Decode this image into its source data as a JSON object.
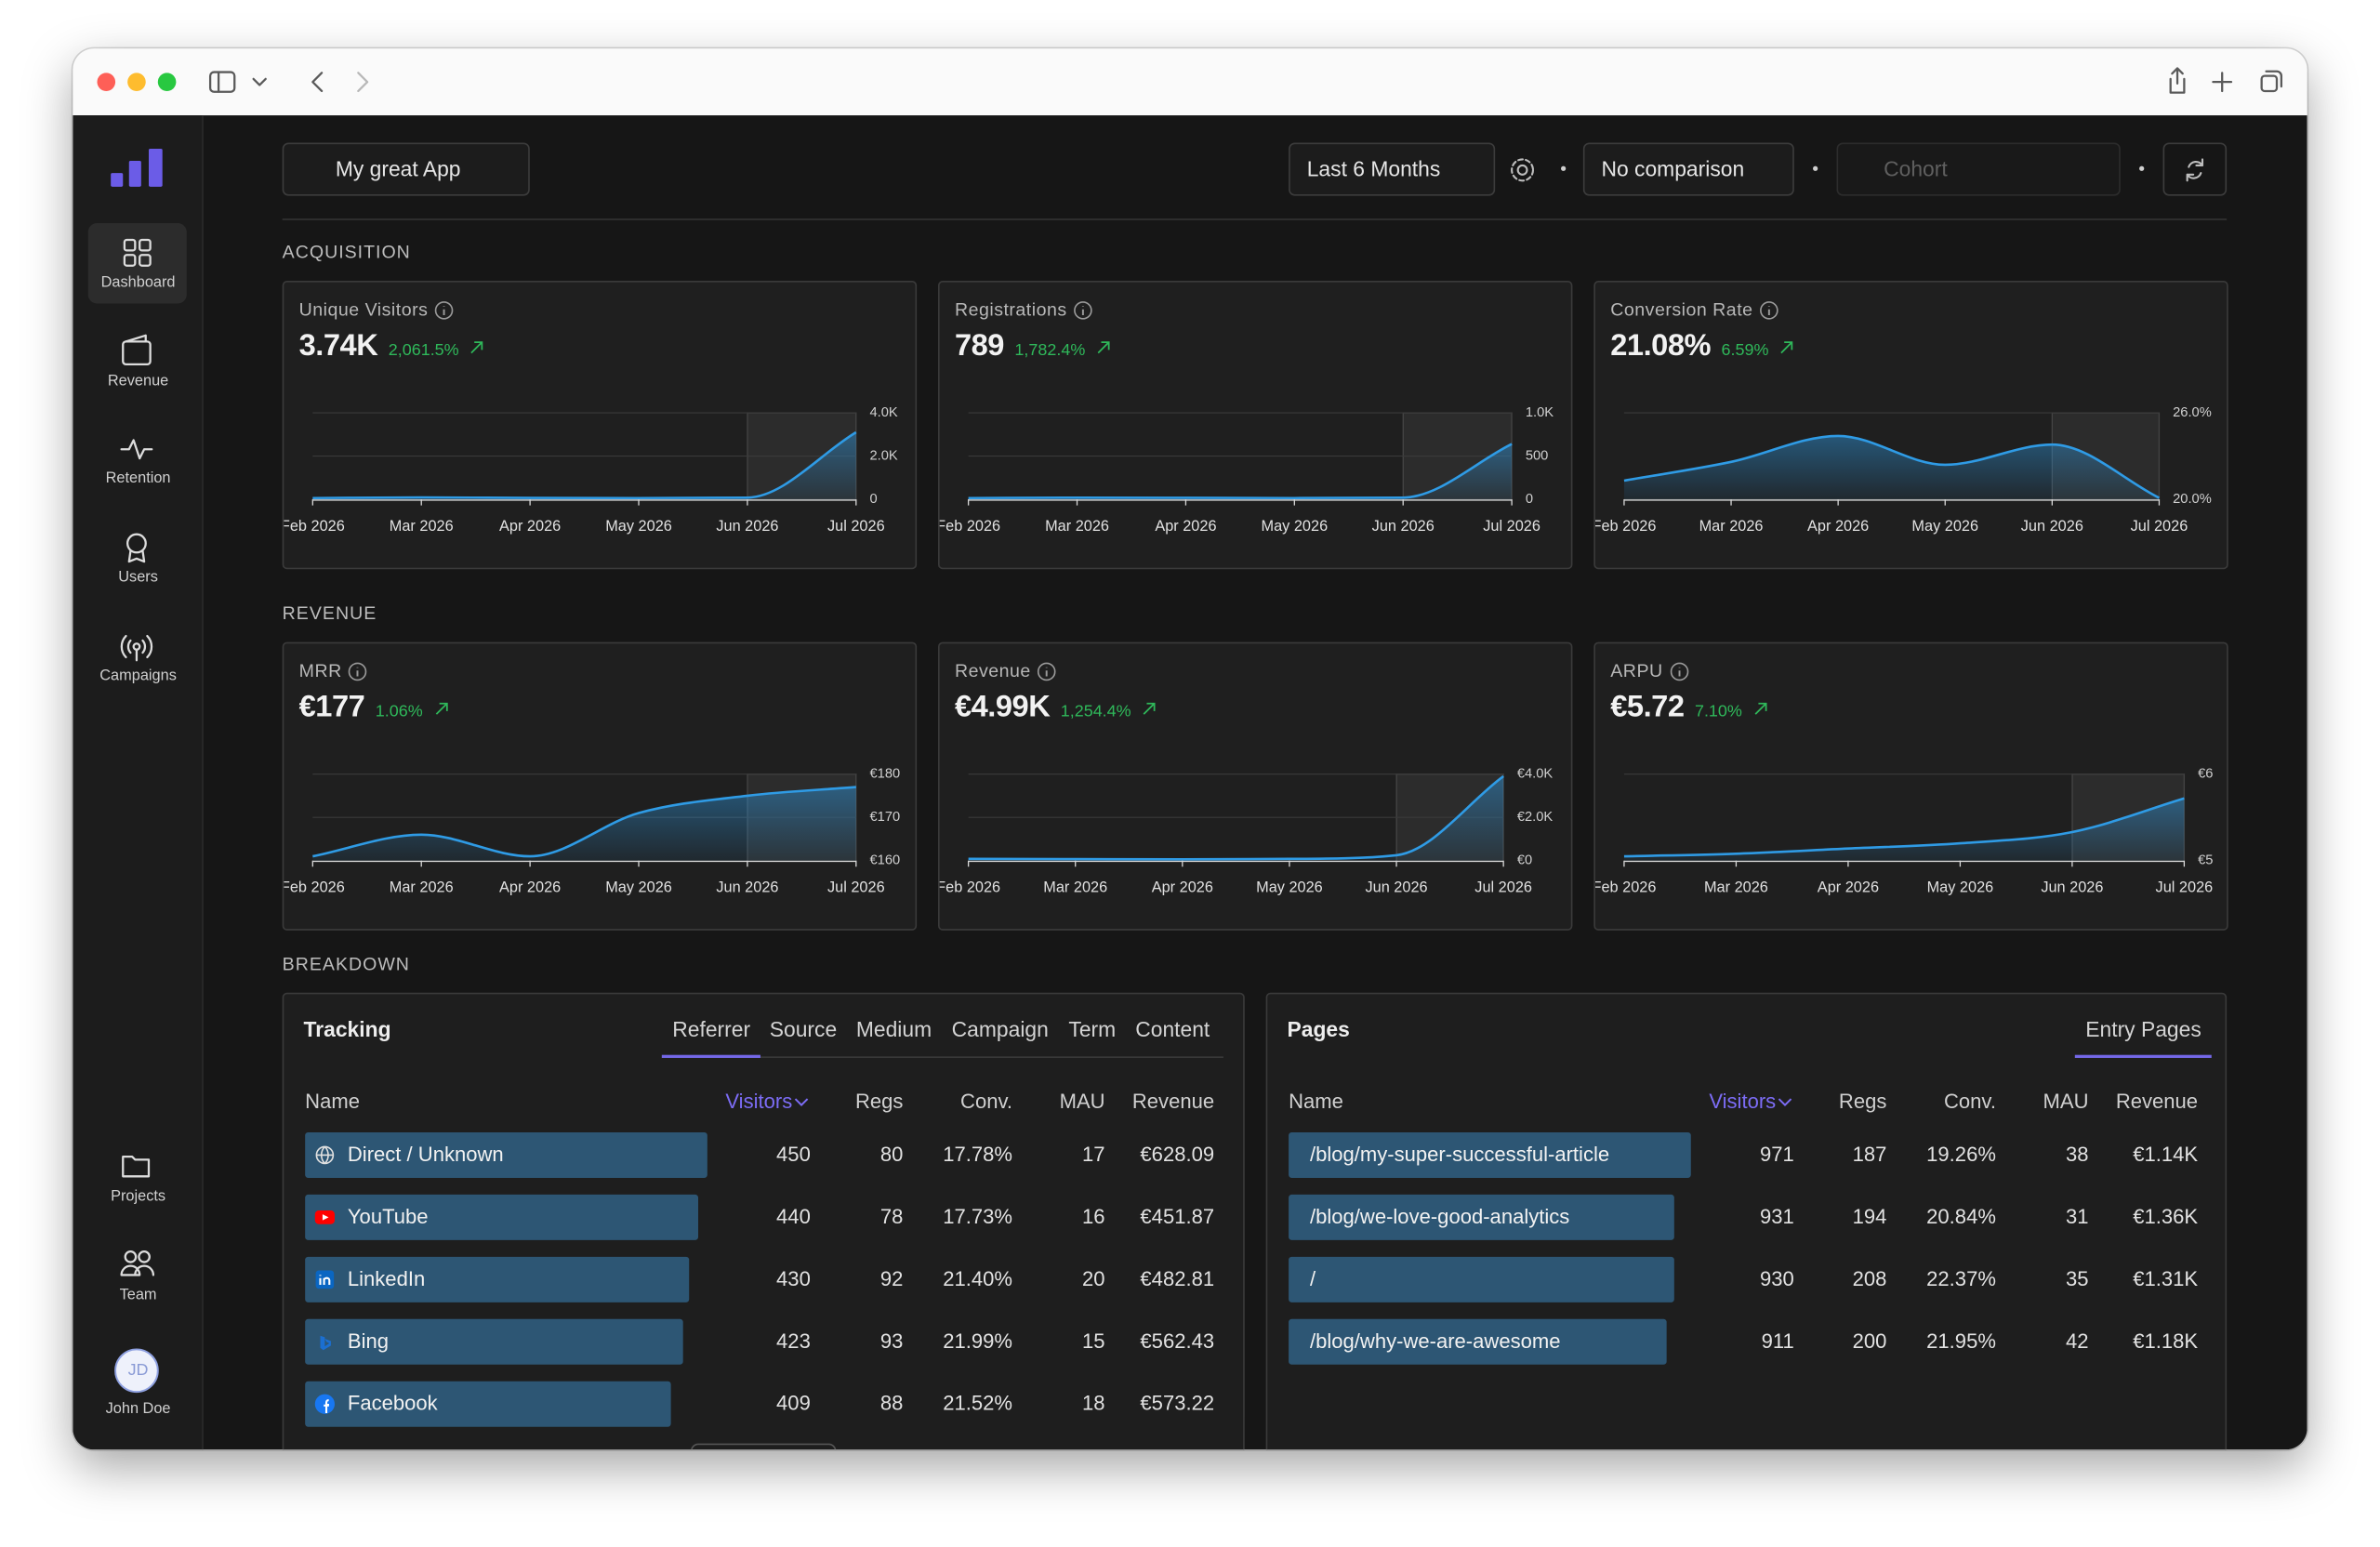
{
  "app": {
    "project": "My great App",
    "period": "Last 6 Months",
    "comparison": "No comparison",
    "cohort_placeholder": "Cohort"
  },
  "sidebar": {
    "nav": [
      "Dashboard",
      "Revenue",
      "Retention",
      "Users",
      "Campaigns"
    ],
    "active": 0,
    "bottom": [
      "Projects",
      "Team"
    ],
    "user_initials": "JD",
    "user_name": "John Doe"
  },
  "sections": [
    {
      "heading": "ACQUISITION",
      "cards": [
        {
          "title": "Unique Visitors",
          "value": "3.74K",
          "change": "2,061.5%",
          "color": "#2f9be5",
          "categories": [
            "Feb 2026",
            "Mar 2026",
            "Apr 2026",
            "May 2026",
            "Jun 2026",
            "Jul 2026"
          ],
          "ylim": [
            0,
            4000
          ],
          "yticks": [
            0,
            {
              "value": 2000,
              "label": "2.0K"
            },
            {
              "value": 4000,
              "label": "4.0K"
            }
          ],
          "values": [
            60,
            90,
            70,
            60,
            80,
            3100
          ]
        },
        {
          "title": "Registrations",
          "value": "789",
          "change": "1,782.4%",
          "color": "#2f9be5",
          "categories": [
            "Feb 2026",
            "Mar 2026",
            "Apr 2026",
            "May 2026",
            "Jun 2026",
            "Jul 2026"
          ],
          "ylim": [
            0,
            1000
          ],
          "yticks": [
            0,
            500,
            {
              "value": 1000,
              "label": "1.0K"
            }
          ],
          "values": [
            15,
            20,
            18,
            15,
            20,
            640
          ]
        },
        {
          "title": "Conversion Rate",
          "value": "21.08%",
          "change": "6.59%",
          "color": "#2f9be5",
          "categories": [
            "Feb 2026",
            "Mar 2026",
            "Apr 2026",
            "May 2026",
            "Jun 2026",
            "Jul 2026"
          ],
          "ylim": [
            20,
            26
          ],
          "yticks": [
            {
              "value": 20,
              "label": "20.0%"
            },
            {
              "value": 26,
              "label": "26.0%"
            }
          ],
          "values": [
            21.3,
            22.6,
            24.4,
            22.4,
            23.8,
            20.1
          ]
        }
      ]
    },
    {
      "heading": "REVENUE",
      "cards": [
        {
          "title": "MRR",
          "value": "€177",
          "change": "1.06%",
          "color": "#2f9be5",
          "categories": [
            "Feb 2026",
            "Mar 2026",
            "Apr 2026",
            "May 2026",
            "Jun 2026",
            "Jul 2026"
          ],
          "ylim": [
            160,
            180
          ],
          "yticks": [
            {
              "value": 160,
              "label": "€160"
            },
            {
              "value": 170,
              "label": "€170"
            },
            {
              "value": 180,
              "label": "€180"
            }
          ],
          "values": [
            161,
            166,
            161,
            171,
            175,
            177
          ]
        },
        {
          "title": "Revenue",
          "value": "€4.99K",
          "change": "1,254.4%",
          "color": "#2f9be5",
          "categories": [
            "Feb 2026",
            "Mar 2026",
            "Apr 2026",
            "May 2026",
            "Jun 2026",
            "Jul 2026"
          ],
          "ylim": [
            0,
            4000
          ],
          "yticks": [
            {
              "value": 0,
              "label": "€0"
            },
            {
              "value": 2000,
              "label": "€2.0K"
            },
            {
              "value": 4000,
              "label": "€4.0K"
            }
          ],
          "values": [
            80,
            70,
            60,
            80,
            250,
            3900
          ]
        },
        {
          "title": "ARPU",
          "value": "€5.72",
          "change": "7.10%",
          "color": "#2f9be5",
          "categories": [
            "Feb 2026",
            "Mar 2026",
            "Apr 2026",
            "May 2026",
            "Jun 2026",
            "Jul 2026"
          ],
          "ylim": [
            5,
            6
          ],
          "yticks": [
            {
              "value": 5,
              "label": "€5"
            },
            {
              "value": 6,
              "label": "€6"
            }
          ],
          "values": [
            5.05,
            5.08,
            5.14,
            5.2,
            5.33,
            5.72
          ]
        }
      ]
    }
  ],
  "breakdown": {
    "heading": "BREAKDOWN",
    "tracking": {
      "title": "Tracking",
      "tabs": [
        "Referrer",
        "Source",
        "Medium",
        "Campaign",
        "Term",
        "Content"
      ],
      "active_tab": 0,
      "columns": [
        "Name",
        "Visitors",
        "Regs",
        "Conv.",
        "MAU",
        "Revenue"
      ],
      "sort_column": 1,
      "rows": [
        {
          "name": "Direct / Unknown",
          "icon": "globe",
          "visitors": 450,
          "regs": 80,
          "conv": "17.78%",
          "mau": 17,
          "revenue": "€628.09"
        },
        {
          "name": "YouTube",
          "icon": "youtube",
          "visitors": 440,
          "regs": 78,
          "conv": "17.73%",
          "mau": 16,
          "revenue": "€451.87"
        },
        {
          "name": "LinkedIn",
          "icon": "linkedin",
          "visitors": 430,
          "regs": 92,
          "conv": "21.40%",
          "mau": 20,
          "revenue": "€482.81"
        },
        {
          "name": "Bing",
          "icon": "bing",
          "visitors": 423,
          "regs": 93,
          "conv": "21.99%",
          "mau": 15,
          "revenue": "€562.43"
        },
        {
          "name": "Facebook",
          "icon": "facebook",
          "visitors": 409,
          "regs": 88,
          "conv": "21.52%",
          "mau": 18,
          "revenue": "€573.22"
        }
      ]
    },
    "pages": {
      "title": "Pages",
      "tabs": [
        "Entry Pages"
      ],
      "active_tab": 0,
      "columns": [
        "Name",
        "Visitors",
        "Regs",
        "Conv.",
        "MAU",
        "Revenue"
      ],
      "sort_column": 1,
      "rows": [
        {
          "name": "/blog/my-super-successful-article",
          "visitors": 971,
          "regs": 187,
          "conv": "19.26%",
          "mau": 38,
          "revenue": "€1.14K"
        },
        {
          "name": "/blog/we-love-good-analytics",
          "visitors": 931,
          "regs": 194,
          "conv": "20.84%",
          "mau": 31,
          "revenue": "€1.36K"
        },
        {
          "name": "/",
          "visitors": 930,
          "regs": 208,
          "conv": "22.37%",
          "mau": 35,
          "revenue": "€1.31K"
        },
        {
          "name": "/blog/why-we-are-awesome",
          "visitors": 911,
          "regs": 200,
          "conv": "21.95%",
          "mau": 42,
          "revenue": "€1.18K"
        }
      ]
    }
  }
}
